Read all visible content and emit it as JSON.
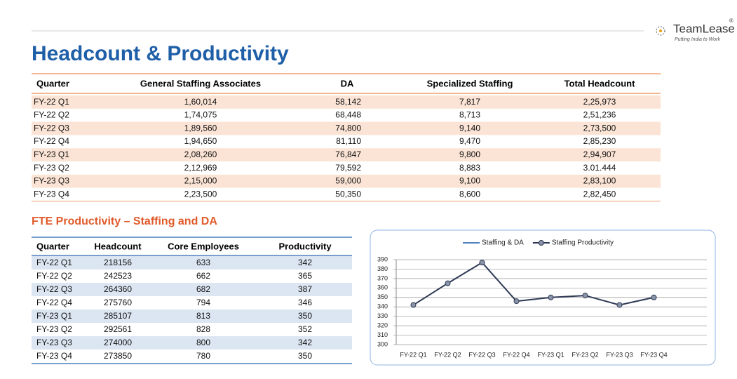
{
  "header": {
    "title": "Headcount & Productivity",
    "logo": {
      "name": "TeamLease",
      "mark": "®",
      "tagline": "Putting India to Work"
    }
  },
  "table": {
    "columns": [
      "Quarter",
      "General Staffing Associates",
      "DA",
      "Specialized Staffing",
      "Total Headcount"
    ],
    "rows": [
      [
        "FY-22 Q1",
        "1,60,014",
        "58,142",
        "7,817",
        "2,25,973"
      ],
      [
        "FY-22 Q2",
        "1,74,075",
        "68,448",
        "8,713",
        "2,51,236"
      ],
      [
        "FY-22 Q3",
        "1,89,560",
        "74,800",
        "9,140",
        "2,73,500"
      ],
      [
        "FY-22 Q4",
        "1,94,650",
        "81,110",
        "9,470",
        "2,85,230"
      ],
      [
        "FY-23 Q1",
        "2,08,260",
        "76,847",
        "9,800",
        "2,94,907"
      ],
      [
        "FY-23 Q2",
        "2,12,969",
        "79,592",
        "8,883",
        "3.01.444"
      ],
      [
        "FY-23 Q3",
        "2,15,000",
        "59,000",
        "9,100",
        "2,83,100"
      ],
      [
        "FY-23 Q4",
        "2,23,500",
        "50,350",
        "8,600",
        "2,82,450"
      ]
    ]
  },
  "section_title": "FTE Productivity – Staffing and DA",
  "table2": {
    "columns": [
      "Quarter",
      "Headcount",
      "Core Employees",
      "Productivity"
    ],
    "rows": [
      [
        "FY-22 Q1",
        "218156",
        "633",
        "342"
      ],
      [
        "FY-22 Q2",
        "242523",
        "662",
        "365"
      ],
      [
        "FY-22 Q3",
        "264360",
        "682",
        "387"
      ],
      [
        "FY-22 Q4",
        "275760",
        "794",
        "346"
      ],
      [
        "FY-23 Q1",
        "285107",
        "813",
        "350"
      ],
      [
        "FY-23 Q2",
        "292561",
        "828",
        "352"
      ],
      [
        "FY-23 Q3",
        "274000",
        "800",
        "342"
      ],
      [
        "FY-23 Q4",
        "273850",
        "780",
        "350"
      ]
    ]
  },
  "chart_data": {
    "type": "line",
    "categories": [
      "FY-22 Q1",
      "FY-22 Q2",
      "FY-22 Q3",
      "FY-22 Q4",
      "FY-23 Q1",
      "FY-23 Q2",
      "FY-23 Q3",
      "FY-23 Q4"
    ],
    "series": [
      {
        "name": "Staffing & DA",
        "color": "#4f81bd",
        "values": [
          null,
          null,
          null,
          null,
          null,
          null,
          null,
          null
        ]
      },
      {
        "name": "Staffing Productivity",
        "color": "#2e3a55",
        "values": [
          342,
          365,
          387,
          346,
          350,
          352,
          342,
          350
        ]
      }
    ],
    "ylim": [
      300,
      390
    ],
    "yticks": [
      300,
      310,
      320,
      330,
      340,
      350,
      360,
      370,
      380,
      390
    ],
    "grid": true,
    "legend": "top"
  }
}
